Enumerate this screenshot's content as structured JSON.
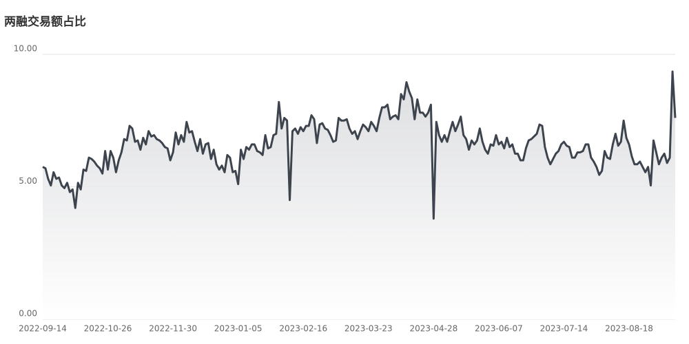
{
  "chart_data": {
    "type": "line",
    "title": "两融交易额占比",
    "categories": [
      "2022-09-14",
      null,
      null,
      null,
      null,
      null,
      null,
      null,
      null,
      null,
      null,
      null,
      null,
      null,
      null,
      null,
      null,
      null,
      null,
      null,
      null,
      null,
      null,
      null,
      "2022-10-26",
      null,
      null,
      null,
      null,
      null,
      null,
      null,
      null,
      null,
      null,
      null,
      null,
      null,
      null,
      null,
      null,
      null,
      null,
      null,
      null,
      null,
      null,
      null,
      "2022-11-30",
      null,
      null,
      null,
      null,
      null,
      null,
      null,
      null,
      null,
      null,
      null,
      null,
      null,
      null,
      null,
      null,
      null,
      null,
      null,
      null,
      null,
      null,
      null,
      "2023-01-05",
      null,
      null,
      null,
      null,
      null,
      null,
      null,
      null,
      null,
      null,
      null,
      null,
      null,
      null,
      null,
      null,
      null,
      null,
      null,
      null,
      null,
      null,
      null,
      "2023-02-16",
      null,
      null,
      null,
      null,
      null,
      null,
      null,
      null,
      null,
      null,
      null,
      null,
      null,
      null,
      null,
      null,
      null,
      null,
      null,
      null,
      null,
      null,
      null,
      "2023-03-23",
      null,
      null,
      null,
      null,
      null,
      null,
      null,
      null,
      null,
      null,
      null,
      null,
      null,
      null,
      null,
      null,
      null,
      null,
      null,
      null,
      null,
      null,
      null,
      "2023-04-28",
      null,
      null,
      null,
      null,
      null,
      null,
      null,
      null,
      null,
      null,
      null,
      null,
      null,
      null,
      null,
      null,
      null,
      null,
      null,
      null,
      null,
      null,
      null,
      "2023-06-07",
      null,
      null,
      null,
      null,
      null,
      null,
      null,
      null,
      null,
      null,
      null,
      null,
      null,
      null,
      null,
      null,
      null,
      null,
      null,
      null,
      null,
      null,
      null,
      "2023-07-14",
      null,
      null,
      null,
      null,
      null,
      null,
      null,
      null,
      null,
      null,
      null,
      null,
      null,
      null,
      null,
      null,
      null,
      null,
      null,
      null,
      null,
      null,
      null,
      "2023-08-18",
      null,
      null,
      null,
      null,
      null,
      null,
      null,
      null,
      null,
      null,
      null,
      null,
      null,
      null,
      null,
      null,
      null
    ],
    "values": [
      5.75,
      5.7,
      5.3,
      5.05,
      5.55,
      5.3,
      5.35,
      5.05,
      4.95,
      5.15,
      4.8,
      4.9,
      4.2,
      5.15,
      4.9,
      5.65,
      5.6,
      6.1,
      6.05,
      5.95,
      5.8,
      5.7,
      5.5,
      6.35,
      5.65,
      6.35,
      6.1,
      5.55,
      6.0,
      6.3,
      6.8,
      6.75,
      7.3,
      7.2,
      6.7,
      6.75,
      6.4,
      6.85,
      6.6,
      7.1,
      6.9,
      6.95,
      6.8,
      6.75,
      6.65,
      6.5,
      6.45,
      6.0,
      6.3,
      7.05,
      6.6,
      6.95,
      6.7,
      7.45,
      7.05,
      7.1,
      6.7,
      6.35,
      6.8,
      6.25,
      6.6,
      6.65,
      6.05,
      6.4,
      5.85,
      5.65,
      5.8,
      5.55,
      6.2,
      6.1,
      5.55,
      5.6,
      5.1,
      6.4,
      6.05,
      6.5,
      6.4,
      6.6,
      6.6,
      6.35,
      6.3,
      6.2,
      6.95,
      6.45,
      6.5,
      6.95,
      7.0,
      8.2,
      7.2,
      7.6,
      7.5,
      4.5,
      7.1,
      7.2,
      7.0,
      7.25,
      7.1,
      7.3,
      7.3,
      7.7,
      7.55,
      6.65,
      7.35,
      7.4,
      7.2,
      7.15,
      6.95,
      6.7,
      6.75,
      7.6,
      7.5,
      7.5,
      7.55,
      7.2,
      7.0,
      7.1,
      6.8,
      7.1,
      7.35,
      7.25,
      7.1,
      7.45,
      7.3,
      7.1,
      7.6,
      8.0,
      8.0,
      8.1,
      7.55,
      7.65,
      7.7,
      7.55,
      8.5,
      8.3,
      8.95,
      8.6,
      8.35,
      7.55,
      8.3,
      7.8,
      7.8,
      7.65,
      7.8,
      8.1,
      3.8,
      7.45,
      6.95,
      6.7,
      6.95,
      6.7,
      7.1,
      7.45,
      7.1,
      7.35,
      7.65,
      6.95,
      6.8,
      6.4,
      6.75,
      6.6,
      6.75,
      7.2,
      6.7,
      6.4,
      6.25,
      6.6,
      6.55,
      6.95,
      6.6,
      6.7,
      6.45,
      6.85,
      6.5,
      6.6,
      6.25,
      6.25,
      6.0,
      6.0,
      6.45,
      6.75,
      6.8,
      6.9,
      7.0,
      7.35,
      7.3,
      6.5,
      6.1,
      5.85,
      6.05,
      6.25,
      6.35,
      6.6,
      6.7,
      6.55,
      6.5,
      6.1,
      6.1,
      6.3,
      6.3,
      6.35,
      6.6,
      6.6,
      6.1,
      5.95,
      5.75,
      5.45,
      5.6,
      6.35,
      6.1,
      6.05,
      6.6,
      7.0,
      6.55,
      6.7,
      7.5,
      6.85,
      6.6,
      6.15,
      5.85,
      5.85,
      5.95,
      5.75,
      5.55,
      5.75,
      5.05,
      6.75,
      6.3,
      5.85,
      6.1,
      6.25,
      5.9,
      6.1,
      9.35,
      7.6
    ],
    "color": "#3d444d",
    "ylim": [
      0,
      10
    ],
    "yticks": [
      {
        "value": 0,
        "label": "0.00"
      },
      {
        "value": 5,
        "label": "5.00"
      },
      {
        "value": 10,
        "label": "10.00"
      }
    ],
    "grid": true
  }
}
